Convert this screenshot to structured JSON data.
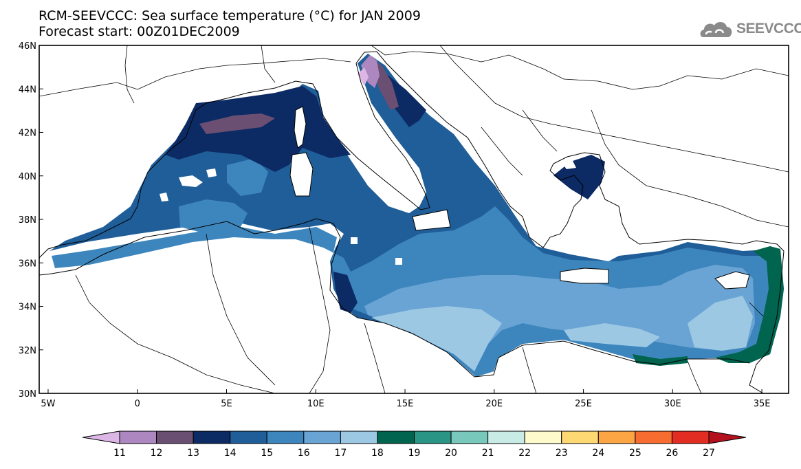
{
  "header": {
    "title_line1": "RCM-SEEVCCC: Sea surface temperature (°C) for JAN 2009",
    "title_line2": "Forecast start: 00Z01DEC2009",
    "logo_text": "SEEVCCC"
  },
  "map": {
    "lon_range": [
      -5.5,
      36.5
    ],
    "lat_range": [
      30.0,
      46.0
    ],
    "x_ticks": [
      {
        "value": -5,
        "label": "5W"
      },
      {
        "value": 0,
        "label": "0"
      },
      {
        "value": 5,
        "label": "5E"
      },
      {
        "value": 10,
        "label": "10E"
      },
      {
        "value": 15,
        "label": "15E"
      },
      {
        "value": 20,
        "label": "20E"
      },
      {
        "value": 25,
        "label": "25E"
      },
      {
        "value": 30,
        "label": "30E"
      },
      {
        "value": 35,
        "label": "35E"
      }
    ],
    "y_ticks": [
      {
        "value": 30,
        "label": "30N"
      },
      {
        "value": 32,
        "label": "32N"
      },
      {
        "value": 34,
        "label": "34N"
      },
      {
        "value": 36,
        "label": "36N"
      },
      {
        "value": 38,
        "label": "38N"
      },
      {
        "value": 40,
        "label": "40N"
      },
      {
        "value": 42,
        "label": "42N"
      },
      {
        "value": 44,
        "label": "44N"
      },
      {
        "value": 46,
        "label": "46N"
      }
    ]
  },
  "colorbar": {
    "levels": [
      "11",
      "12",
      "13",
      "14",
      "15",
      "16",
      "17",
      "18",
      "19",
      "20",
      "21",
      "22",
      "23",
      "24",
      "25",
      "26",
      "27"
    ],
    "colors": [
      "#dcb6e4",
      "#ad87c0",
      "#6b4f73",
      "#0c2a64",
      "#1f5e98",
      "#3d86bd",
      "#6aa4d4",
      "#9cc8e4",
      "#00644e",
      "#2a9584",
      "#78c9bc",
      "#c8ebe5",
      "#fffacc",
      "#fdd873",
      "#fba545",
      "#f66c31",
      "#e22d23",
      "#b3111e"
    ]
  }
}
